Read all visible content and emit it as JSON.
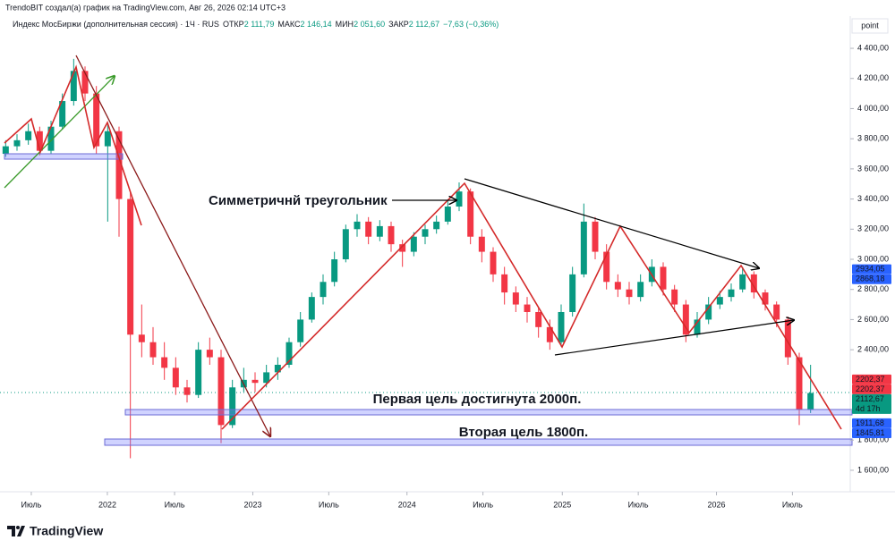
{
  "chart_data": {
    "type": "candlestick",
    "title": "TrendoBIT создал(а) график на TradingView.com, Авг 26, 2026 02:14 UTC+3",
    "subtitle": "Индекс МосБиржи (дополнительная сессия) · 1Ч · RUS",
    "legend_items": [
      {
        "label": "ОТКР",
        "value": "2 111,79"
      },
      {
        "label": "МАКС",
        "value": "2 146,14"
      },
      {
        "label": "МИН",
        "value": "2 051,60"
      },
      {
        "label": "ЗАКР",
        "value": "2 112,67"
      }
    ],
    "change": "−7,63 (−0,36%)",
    "y_unit": "point",
    "brand": "TradingView",
    "up_color": "#089981",
    "down_color": "#f23645",
    "annotations": [
      "Симметричнй треугольник",
      "Первая цель достигнута 2000п.",
      "Вторая цель 1800п."
    ],
    "xlim": [
      0,
      75
    ],
    "xticks": [
      {
        "value": 2.76,
        "label": "Июль"
      },
      {
        "value": 9.47,
        "label": "2022"
      },
      {
        "value": 15.4,
        "label": "Июль"
      },
      {
        "value": 22.3,
        "label": "2023"
      },
      {
        "value": 29.0,
        "label": "Июль"
      },
      {
        "value": 35.9,
        "label": "2024"
      },
      {
        "value": 42.6,
        "label": "Июль"
      },
      {
        "value": 49.6,
        "label": "2025"
      },
      {
        "value": 56.3,
        "label": "Июль"
      },
      {
        "value": 63.2,
        "label": "2026"
      },
      {
        "value": 69.9,
        "label": "Июль"
      }
    ],
    "ylim": [
      1487,
      4602
    ],
    "yticks": [
      {
        "value": 1600,
        "label": "1 600,00"
      },
      {
        "value": 1800,
        "label": "1 800,00"
      },
      {
        "value": 2000,
        "label": "2 000,00"
      },
      {
        "value": 2400,
        "label": "2 400,00"
      },
      {
        "value": 2600,
        "label": "2 600,00"
      },
      {
        "value": 2800,
        "label": "2 800,00"
      },
      {
        "value": 3000,
        "label": "3 000,00"
      },
      {
        "value": 3200,
        "label": "3 200,00"
      },
      {
        "value": 3400,
        "label": "3 400,00"
      },
      {
        "value": 3600,
        "label": "3 600,00"
      },
      {
        "value": 3800,
        "label": "3 800,00"
      },
      {
        "value": 4000,
        "label": "4 000,00"
      },
      {
        "value": 4200,
        "label": "4 200,00"
      },
      {
        "value": 4400,
        "label": "4 400,00"
      }
    ],
    "price_tags": [
      {
        "value": 2934.05,
        "label": "2934,05",
        "color": "#2962ff"
      },
      {
        "value": 2868.18,
        "label": "2868,18",
        "color": "#2962ff"
      },
      {
        "value": 2202.37,
        "label": "2202,37",
        "color": "#f23645"
      },
      {
        "value": 2202.37,
        "label": "2202,37",
        "color": "#f23645"
      },
      {
        "value": 2112.67,
        "label": "2112,67",
        "color": "#089981",
        "note": "4d 17h"
      },
      {
        "value": 1911.68,
        "label": "1911,68",
        "color": "#2962ff"
      },
      {
        "value": 1845.81,
        "label": "1845,81",
        "color": "#2962ff"
      }
    ],
    "ohlc": [
      [
        3700,
        3790,
        3680,
        3750
      ],
      [
        3750,
        3830,
        3720,
        3790
      ],
      [
        3790,
        3900,
        3760,
        3850
      ],
      [
        3850,
        3880,
        3690,
        3720
      ],
      [
        3720,
        3920,
        3700,
        3880
      ],
      [
        3880,
        4100,
        3860,
        4050
      ],
      [
        4050,
        4330,
        4020,
        4250
      ],
      [
        4250,
        4280,
        4050,
        4100
      ],
      [
        4100,
        4150,
        3700,
        3750
      ],
      [
        3750,
        3900,
        3250,
        3850
      ],
      [
        3850,
        3880,
        3150,
        3400
      ],
      [
        3400,
        3450,
        1680,
        2500
      ],
      [
        2500,
        2700,
        2350,
        2450
      ],
      [
        2450,
        2550,
        2300,
        2350
      ],
      [
        2350,
        2450,
        2200,
        2280
      ],
      [
        2280,
        2350,
        2100,
        2150
      ],
      [
        2150,
        2200,
        2050,
        2100
      ],
      [
        2100,
        2450,
        2080,
        2400
      ],
      [
        2400,
        2480,
        2300,
        2350
      ],
      [
        2350,
        2400,
        1780,
        1900
      ],
      [
        1900,
        2200,
        1880,
        2150
      ],
      [
        2150,
        2280,
        2120,
        2200
      ],
      [
        2200,
        2250,
        2120,
        2180
      ],
      [
        2180,
        2300,
        2150,
        2250
      ],
      [
        2250,
        2350,
        2200,
        2300
      ],
      [
        2300,
        2480,
        2280,
        2450
      ],
      [
        2450,
        2650,
        2420,
        2600
      ],
      [
        2600,
        2780,
        2580,
        2750
      ],
      [
        2750,
        2900,
        2700,
        2850
      ],
      [
        2850,
        3050,
        2820,
        3000
      ],
      [
        3000,
        3230,
        2980,
        3200
      ],
      [
        3200,
        3300,
        3150,
        3250
      ],
      [
        3250,
        3280,
        3100,
        3150
      ],
      [
        3150,
        3260,
        3120,
        3220
      ],
      [
        3220,
        3250,
        3050,
        3100
      ],
      [
        3100,
        3130,
        2950,
        3050
      ],
      [
        3050,
        3180,
        3020,
        3150
      ],
      [
        3150,
        3230,
        3100,
        3200
      ],
      [
        3200,
        3290,
        3170,
        3250
      ],
      [
        3250,
        3390,
        3230,
        3350
      ],
      [
        3350,
        3510,
        3320,
        3450
      ],
      [
        3450,
        3470,
        3100,
        3150
      ],
      [
        3150,
        3200,
        2980,
        3050
      ],
      [
        3050,
        3080,
        2850,
        2900
      ],
      [
        2900,
        2950,
        2700,
        2780
      ],
      [
        2780,
        2820,
        2650,
        2700
      ],
      [
        2700,
        2750,
        2580,
        2650
      ],
      [
        2650,
        2680,
        2480,
        2550
      ],
      [
        2550,
        2600,
        2400,
        2450
      ],
      [
        2450,
        2700,
        2420,
        2650
      ],
      [
        2650,
        2950,
        2620,
        2900
      ],
      [
        2900,
        3370,
        2880,
        3250
      ],
      [
        3250,
        3280,
        3000,
        3050
      ],
      [
        3050,
        3100,
        2800,
        2850
      ],
      [
        2850,
        2900,
        2750,
        2800
      ],
      [
        2800,
        2850,
        2700,
        2750
      ],
      [
        2750,
        2900,
        2720,
        2850
      ],
      [
        2850,
        3000,
        2820,
        2950
      ],
      [
        2950,
        2980,
        2760,
        2800
      ],
      [
        2800,
        2830,
        2650,
        2700
      ],
      [
        2700,
        2730,
        2450,
        2500
      ],
      [
        2500,
        2650,
        2480,
        2600
      ],
      [
        2600,
        2750,
        2570,
        2700
      ],
      [
        2700,
        2790,
        2670,
        2750
      ],
      [
        2750,
        2840,
        2720,
        2800
      ],
      [
        2800,
        2950,
        2780,
        2900
      ],
      [
        2900,
        2920,
        2740,
        2780
      ],
      [
        2780,
        2800,
        2660,
        2700
      ],
      [
        2700,
        2720,
        2550,
        2600
      ],
      [
        2600,
        2620,
        2300,
        2350
      ],
      [
        2350,
        2380,
        1900,
        2000
      ],
      [
        2000,
        2300,
        1980,
        2112.67
      ]
    ]
  }
}
